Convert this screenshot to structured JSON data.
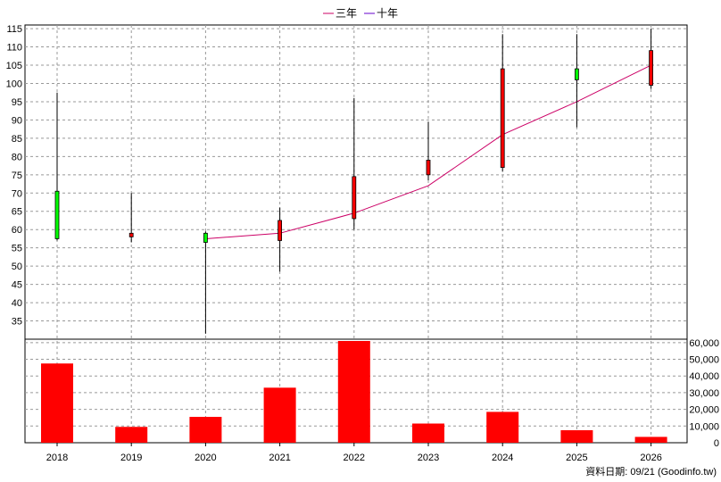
{
  "legend": [
    {
      "label": "三年",
      "color": "#cc0066"
    },
    {
      "label": "十年",
      "color": "#6600cc"
    }
  ],
  "footer": "資料日期: 09/21  (Goodinfo.tw)",
  "chart_data": [
    {
      "type": "candlestick",
      "categories": [
        "2018",
        "2019",
        "2020",
        "2021",
        "2022",
        "2023",
        "2024",
        "2025",
        "2026"
      ],
      "ylim": [
        30,
        116
      ],
      "yticks": [
        35,
        40,
        45,
        50,
        55,
        60,
        65,
        70,
        75,
        80,
        85,
        90,
        95,
        100,
        105,
        110,
        115
      ],
      "grid": true,
      "colors": {
        "up": "#ff0000",
        "down": "#00ff00"
      },
      "candles": [
        {
          "open": 70.5,
          "close": 57.5,
          "high": 97.5,
          "low": 57.0
        },
        {
          "open": 58.0,
          "close": 59.0,
          "high": 70.0,
          "low": 56.5
        },
        {
          "open": 59.0,
          "close": 56.5,
          "high": 59.5,
          "low": 31.5
        },
        {
          "open": 57.0,
          "close": 62.5,
          "high": 66.0,
          "low": 48.5
        },
        {
          "open": 63.0,
          "close": 74.5,
          "high": 96.0,
          "low": 60.0
        },
        {
          "open": 75.0,
          "close": 79.0,
          "high": 89.5,
          "low": 73.5
        },
        {
          "open": 77.0,
          "close": 104.0,
          "high": 113.5,
          "low": 76.0
        },
        {
          "open": 104.0,
          "close": 101.0,
          "high": 113.5,
          "low": 88.0
        },
        {
          "open": 99.5,
          "close": 109.0,
          "high": 115.0,
          "low": 98.5
        }
      ],
      "series": [
        {
          "name": "三年",
          "color": "#cc0066",
          "values": [
            null,
            null,
            57.5,
            59.0,
            64.5,
            72.0,
            86.0,
            95.0,
            105.0
          ]
        }
      ]
    },
    {
      "type": "bar",
      "categories": [
        "2018",
        "2019",
        "2020",
        "2021",
        "2022",
        "2023",
        "2024",
        "2025",
        "2026"
      ],
      "values": [
        47500,
        9500,
        15500,
        33000,
        61000,
        11500,
        18500,
        7500,
        3500
      ],
      "ylim": [
        0,
        60000
      ],
      "yticks": [
        "0",
        "10,000",
        "20,000",
        "30,000",
        "40,000",
        "50,000",
        "60,000"
      ],
      "color": "#ff0000",
      "grid": true
    }
  ]
}
